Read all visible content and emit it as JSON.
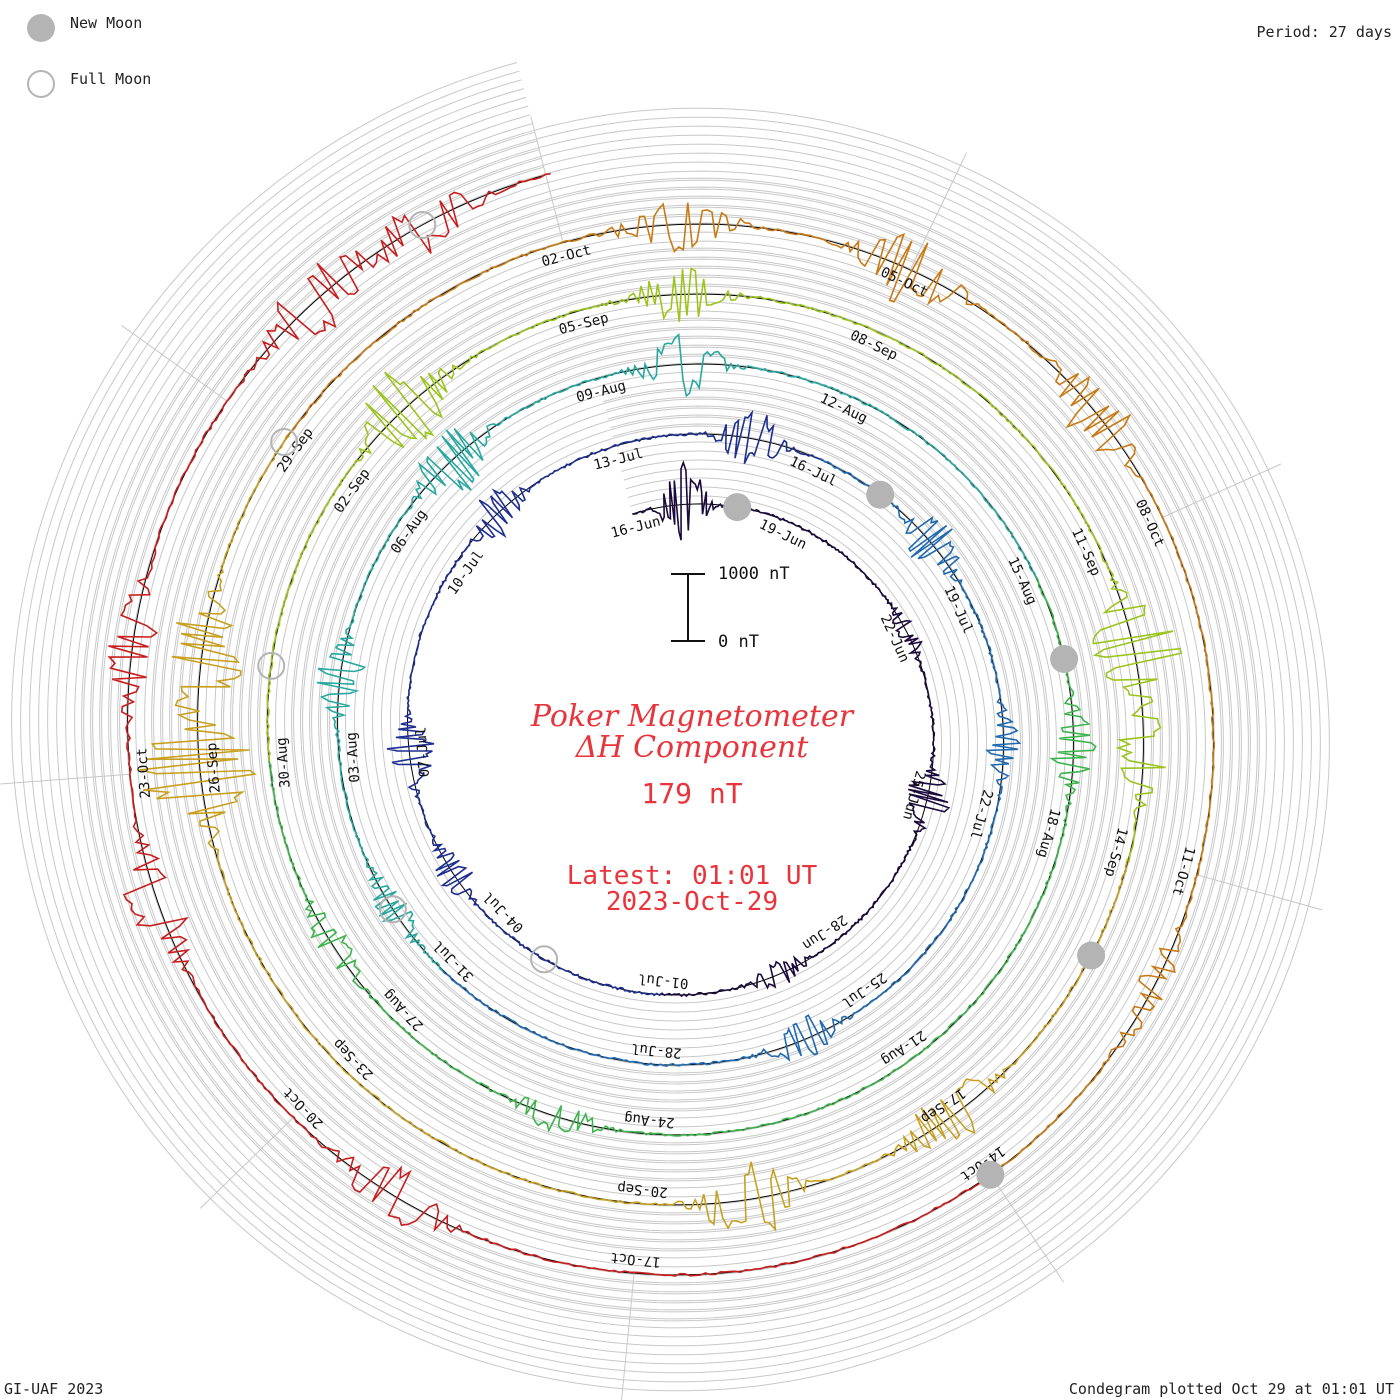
{
  "header": {
    "period_text": "Period: 27 days"
  },
  "legend": {
    "new_moon_label": "New Moon",
    "full_moon_label": "Full Moon",
    "new_moon_color": "#b4b4b4",
    "full_moon_color": "#b4b4b4"
  },
  "title": {
    "line1": "Poker Magnetometer",
    "line2": "ΔH Component",
    "current_value": "179 nT",
    "latest_time": "Latest: 01:01 UT",
    "latest_date": "2023-Oct-29"
  },
  "scale_bar": {
    "top_label": "1000 nT",
    "bottom_label": "0 nT"
  },
  "footer": {
    "left": "GI-UAF 2023",
    "right": "Condegram plotted Oct 29 at 01:01 UT"
  },
  "chart_data": {
    "type": "line",
    "layout": "spiral condegram",
    "period_days": 27,
    "start_date": "2023-06-16",
    "end_date": "2023-10-29",
    "scale_bar_nT": 1000,
    "grid": true,
    "series_colors": [
      "#1a0a3c",
      "#1e2f8f",
      "#1f6ab0",
      "#27a8a0",
      "#3cb44b",
      "#9cc41e",
      "#c8a020",
      "#c87a14",
      "#c81e1e"
    ],
    "date_labels": [
      "16-Jun",
      "19-Jun",
      "22-Jun",
      "25-Jun",
      "28-Jun",
      "01-Jul",
      "04-Jul",
      "07-Jul",
      "10-Jul",
      "13-Jul",
      "16-Jul",
      "19-Jul",
      "22-Jul",
      "25-Jul",
      "28-Jul",
      "31-Jul",
      "03-Aug",
      "06-Aug",
      "09-Aug",
      "12-Aug",
      "15-Aug",
      "18-Aug",
      "21-Aug",
      "24-Aug",
      "27-Aug",
      "30-Aug",
      "02-Sep",
      "05-Sep",
      "08-Sep",
      "11-Sep",
      "14-Sep",
      "17-Sep",
      "20-Sep",
      "23-Sep",
      "26-Sep",
      "29-Sep",
      "02-Oct",
      "05-Oct",
      "08-Oct",
      "11-Oct",
      "14-Oct",
      "17-Oct",
      "20-Oct",
      "23-Oct"
    ],
    "new_moons": [
      "2023-06-18",
      "2023-07-17",
      "2023-08-16",
      "2023-09-15",
      "2023-10-14"
    ],
    "full_moons": [
      "2023-07-03",
      "2023-08-01",
      "2023-08-31",
      "2023-09-29",
      "2023-10-28"
    ],
    "disturbances_nT": [
      {
        "date": "2023-06-17",
        "value": 450
      },
      {
        "date": "2023-06-22",
        "value": 120
      },
      {
        "date": "2023-06-25",
        "value": 280
      },
      {
        "date": "2023-06-29",
        "value": 160
      },
      {
        "date": "2023-07-05",
        "value": 200
      },
      {
        "date": "2023-07-07",
        "value": 300
      },
      {
        "date": "2023-07-11",
        "value": 250
      },
      {
        "date": "2023-07-15",
        "value": 350
      },
      {
        "date": "2023-07-18",
        "value": 300
      },
      {
        "date": "2023-07-21",
        "value": 200
      },
      {
        "date": "2023-07-26",
        "value": 250
      },
      {
        "date": "2023-08-01",
        "value": 200
      },
      {
        "date": "2023-08-04",
        "value": 300
      },
      {
        "date": "2023-08-07",
        "value": 400
      },
      {
        "date": "2023-08-10",
        "value": 350
      },
      {
        "date": "2023-08-17",
        "value": 250
      },
      {
        "date": "2023-08-25",
        "value": 200
      },
      {
        "date": "2023-08-28",
        "value": 200
      },
      {
        "date": "2023-09-03",
        "value": 500
      },
      {
        "date": "2023-09-06",
        "value": 300
      },
      {
        "date": "2023-09-12",
        "value": 550
      },
      {
        "date": "2023-09-13",
        "value": 300
      },
      {
        "date": "2023-09-17",
        "value": 400
      },
      {
        "date": "2023-09-19",
        "value": 450
      },
      {
        "date": "2023-09-26",
        "value": 700
      },
      {
        "date": "2023-09-27",
        "value": 500
      },
      {
        "date": "2023-10-03",
        "value": 300
      },
      {
        "date": "2023-10-05",
        "value": 400
      },
      {
        "date": "2023-10-07",
        "value": 350
      },
      {
        "date": "2023-10-12",
        "value": 200
      },
      {
        "date": "2023-10-19",
        "value": 300
      },
      {
        "date": "2023-10-22",
        "value": 350
      },
      {
        "date": "2023-10-24",
        "value": 300
      },
      {
        "date": "2023-10-27",
        "value": 400
      },
      {
        "date": "2023-10-28",
        "value": 300
      }
    ]
  }
}
